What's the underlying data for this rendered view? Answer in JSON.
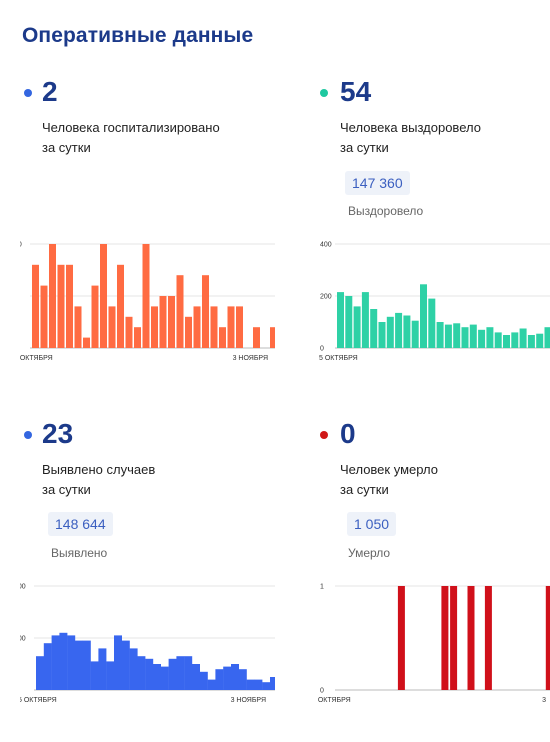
{
  "page": {
    "title": "Оперативные данные"
  },
  "panels": [
    {
      "id": "hospitalized",
      "number": "2",
      "desc_line1": "Человека госпитализировано",
      "desc_line2": "за сутки",
      "total": "",
      "total_label": "",
      "dot_color": "#3366e0",
      "bar_color": "#ff6b42"
    },
    {
      "id": "recovered",
      "number": "54",
      "desc_line1": "Человека выздоровело",
      "desc_line2": "за сутки",
      "total": "147 360",
      "total_label": "Выздоровело",
      "dot_color": "#1ec8a0",
      "bar_color": "#2ed1a6"
    },
    {
      "id": "cases",
      "number": "23",
      "desc_line1": "Выявлено случаев",
      "desc_line2": "за сутки",
      "total": "148 644",
      "total_label": "Выявлено",
      "dot_color": "#3366e0",
      "bar_color": "#3866ef"
    },
    {
      "id": "deaths",
      "number": "0",
      "desc_line1": "Человек умерло",
      "desc_line2": "за сутки",
      "total": "1 050",
      "total_label": "Умерло",
      "dot_color": "#d01818",
      "bar_color": "#d0101a"
    }
  ],
  "chart_data": [
    {
      "type": "bar",
      "panel": "hospitalized",
      "yticks": [
        "10",
        "5",
        "0"
      ],
      "ylim": [
        0,
        10
      ],
      "xstart": "4 ОКТЯБРЯ",
      "xend": "3 НОЯБРЯ",
      "values": [
        8,
        6,
        10,
        8,
        8,
        4,
        1,
        6,
        10,
        4,
        8,
        3,
        2,
        10,
        4,
        5,
        5,
        7,
        3,
        4,
        7,
        4,
        2,
        4,
        4,
        0,
        2,
        0,
        2
      ],
      "grid": true
    },
    {
      "type": "bar",
      "panel": "recovered",
      "yticks": [
        "400",
        "200",
        "0"
      ],
      "ylim": [
        0,
        400
      ],
      "xstart": "5 ОКТЯБРЯ",
      "xend": "",
      "values": [
        215,
        200,
        160,
        215,
        150,
        100,
        120,
        135,
        125,
        105,
        245,
        190,
        100,
        90,
        95,
        80,
        90,
        70,
        80,
        60,
        50,
        60,
        75,
        50,
        55,
        80,
        60,
        75,
        70,
        80
      ],
      "grid": true
    },
    {
      "type": "bar",
      "panel": "cases",
      "yticks": [
        "200",
        "100",
        "0"
      ],
      "ylim": [
        0,
        200
      ],
      "xstart": "5 ОКТЯБРЯ",
      "xend": "3 НОЯБРЯ",
      "values": [
        65,
        90,
        105,
        110,
        105,
        95,
        95,
        55,
        80,
        55,
        105,
        95,
        80,
        65,
        60,
        50,
        45,
        60,
        65,
        65,
        50,
        35,
        20,
        40,
        45,
        50,
        40,
        20,
        20,
        15,
        25
      ],
      "grid": true
    },
    {
      "type": "bar",
      "panel": "deaths",
      "yticks": [
        "1",
        "0"
      ],
      "ylim": [
        0,
        1
      ],
      "xstart": "5 ОКТЯБРЯ",
      "xend": "3",
      "values": [
        0,
        0,
        0,
        0,
        0,
        0,
        0,
        1,
        0,
        0,
        0,
        0,
        1,
        1,
        0,
        1,
        0,
        1,
        0,
        0,
        0,
        0,
        0,
        0,
        1
      ],
      "grid": true
    }
  ]
}
